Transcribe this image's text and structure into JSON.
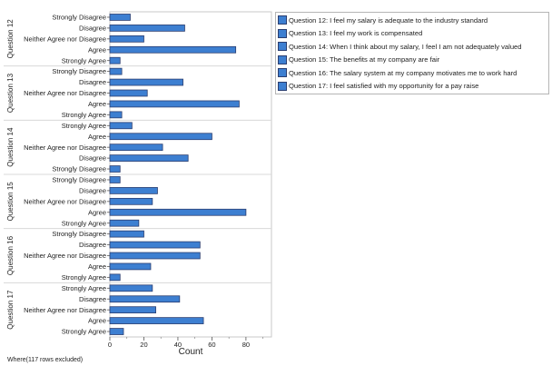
{
  "chart_data": {
    "type": "bar",
    "orientation": "horizontal",
    "xlabel": "Count",
    "xlim": [
      0,
      95
    ],
    "xticks": [
      0,
      20,
      40,
      60,
      80
    ],
    "bar_color": "#3d7fd1",
    "bar_edge_color": "#2b3e70",
    "legend_position": "top-right",
    "groups": [
      {
        "name": "Question 12",
        "categories": [
          "Strongly Disagree",
          "Disagree",
          "Neither Agree nor Disagree",
          "Agree",
          "Strongly Agree"
        ],
        "values": [
          12,
          44,
          20,
          74,
          6
        ]
      },
      {
        "name": "Question 13",
        "categories": [
          "Strongly Disagree",
          "Disagree",
          "Neither Agree nor Disagree",
          "Agree",
          "Strongly Agree"
        ],
        "values": [
          7,
          43,
          22,
          76,
          7
        ]
      },
      {
        "name": "Question 14",
        "categories": [
          "Strongly Agree",
          "Agree",
          "Neither Agree nor Disagree",
          "Disagree",
          "Strongly Disagree"
        ],
        "values": [
          13,
          60,
          31,
          46,
          6
        ]
      },
      {
        "name": "Question 15",
        "categories": [
          "Strongly Disagree",
          "Disagree",
          "Neither Agree nor Disagree",
          "Agree",
          "Strongly Agree"
        ],
        "values": [
          6,
          28,
          25,
          80,
          17
        ]
      },
      {
        "name": "Question 16",
        "categories": [
          "Strongly Disagree",
          "Disagree",
          "Neither Agree nor Disagree",
          "Agree",
          "Strongly Agree"
        ],
        "values": [
          20,
          53,
          53,
          24,
          6
        ]
      },
      {
        "name": "Question 17",
        "categories": [
          "Strongly Agree",
          "Disagree",
          "Neither Agree nor Disagree",
          "Agree",
          "Strongly Agree"
        ],
        "values": [
          25,
          41,
          27,
          55,
          8
        ]
      }
    ]
  },
  "legend": {
    "items": [
      "Question 12: I feel my salary is adequate to the industry standard",
      "Question 13: I feel my work is compensated",
      "Question 14: When I think about my salary, I feel I am not adequately valued",
      "Question 15: The benefits at my company are fair",
      "Question 16: The salary system at my company motivates me to work hard",
      "Question 17: I feel satisfied with my opportunity for a pay raise"
    ],
    "swatch_color": "#3d7fd1"
  },
  "footnote": "Where(117 rows excluded)"
}
